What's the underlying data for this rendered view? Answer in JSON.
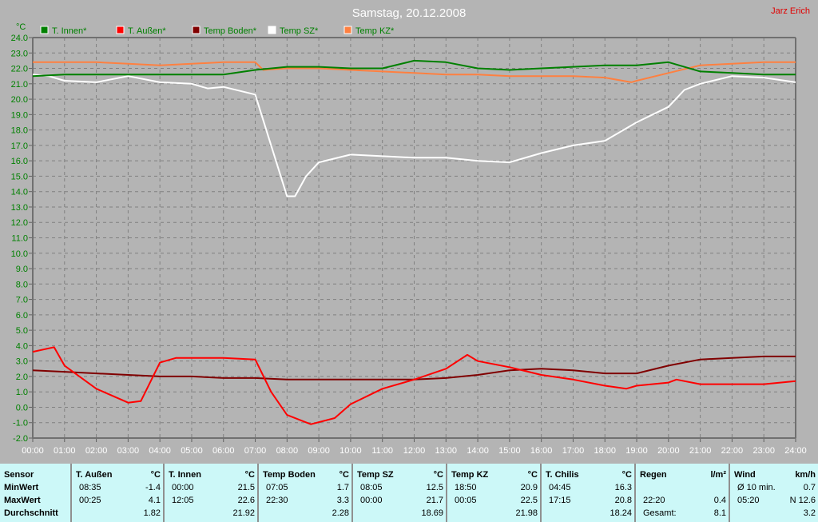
{
  "header": {
    "title": "Samstag, 20.12.2008",
    "author": "Jarz Erich",
    "unit": "°C"
  },
  "chart_data": {
    "type": "line",
    "title": "Samstag, 20.12.2008",
    "ylabel": "°C",
    "ylim": [
      -2,
      24
    ],
    "xlim": [
      0,
      24
    ],
    "grid": true,
    "legend": "top",
    "yticks": [
      "24.0",
      "23.0",
      "22.0",
      "21.0",
      "20.0",
      "19.0",
      "18.0",
      "17.0",
      "16.0",
      "15.0",
      "14.0",
      "13.0",
      "12.0",
      "11.0",
      "10.0",
      "9.0",
      "8.0",
      "7.0",
      "6.0",
      "5.0",
      "4.0",
      "3.0",
      "2.0",
      "1.0",
      "0.0",
      "-1.0",
      "-2.0"
    ],
    "xticks": [
      "00:00",
      "01:00",
      "02:00",
      "03:00",
      "04:00",
      "05:00",
      "06:00",
      "07:00",
      "08:00",
      "09:00",
      "10:00",
      "11:00",
      "12:00",
      "13:00",
      "14:00",
      "15:00",
      "16:00",
      "17:00",
      "18:00",
      "19:00",
      "20:00",
      "21:00",
      "22:00",
      "23:00",
      "24:00"
    ],
    "series": [
      {
        "name": "T. Innen*",
        "color": "#008000",
        "x": [
          0,
          1,
          2,
          3,
          4,
          5,
          6,
          7,
          8,
          9,
          10,
          11,
          12,
          13,
          14,
          15,
          16,
          17,
          18,
          19,
          20,
          21,
          22,
          23,
          24
        ],
        "y": [
          21.5,
          21.6,
          21.6,
          21.6,
          21.6,
          21.6,
          21.6,
          21.9,
          22.1,
          22.1,
          22.0,
          22.0,
          22.5,
          22.4,
          22.0,
          21.9,
          22.0,
          22.1,
          22.2,
          22.2,
          22.4,
          21.8,
          21.7,
          21.6,
          21.6
        ]
      },
      {
        "name": "T. Außen*",
        "color": "#ff0000",
        "x": [
          0,
          0.67,
          1,
          2,
          3,
          3.4,
          4,
          4.5,
          5,
          6,
          7,
          7.5,
          8,
          8.75,
          9.5,
          10,
          11,
          12,
          13,
          13.67,
          14,
          15,
          16,
          17,
          18,
          18.67,
          19,
          20,
          20.25,
          21,
          22,
          23,
          24
        ],
        "y": [
          3.6,
          3.9,
          2.7,
          1.2,
          0.3,
          0.4,
          2.9,
          3.2,
          3.2,
          3.2,
          3.1,
          1.0,
          -0.5,
          -1.1,
          -0.7,
          0.2,
          1.2,
          1.8,
          2.5,
          3.4,
          3.0,
          2.6,
          2.1,
          1.8,
          1.4,
          1.2,
          1.4,
          1.6,
          1.8,
          1.5,
          1.5,
          1.5,
          1.7
        ]
      },
      {
        "name": "Temp Boden*",
        "color": "#800000",
        "x": [
          0,
          1,
          2,
          3,
          4,
          5,
          6,
          7,
          8,
          9,
          10,
          11,
          12,
          13,
          14,
          15,
          16,
          17,
          18,
          19,
          20,
          21,
          22,
          23,
          24
        ],
        "y": [
          2.4,
          2.3,
          2.2,
          2.1,
          2.0,
          2.0,
          1.9,
          1.9,
          1.8,
          1.8,
          1.8,
          1.8,
          1.8,
          1.9,
          2.1,
          2.4,
          2.5,
          2.4,
          2.2,
          2.2,
          2.7,
          3.1,
          3.2,
          3.3,
          3.3
        ]
      },
      {
        "name": "Temp SZ*",
        "color": "#ffffff",
        "x": [
          0,
          0.5,
          1,
          2,
          3,
          4,
          5,
          5.5,
          6,
          7,
          7.5,
          8,
          8.25,
          8.6,
          9,
          10,
          11,
          12,
          13,
          14,
          15,
          16,
          17,
          18,
          19,
          20,
          20.5,
          21,
          22,
          23,
          24
        ],
        "y": [
          21.6,
          21.5,
          21.2,
          21.1,
          21.5,
          21.1,
          21.0,
          20.7,
          20.8,
          20.3,
          17.0,
          13.7,
          13.7,
          15.0,
          15.9,
          16.4,
          16.3,
          16.2,
          16.2,
          16.0,
          15.9,
          16.5,
          17.0,
          17.3,
          18.5,
          19.5,
          20.6,
          21.0,
          21.5,
          21.4,
          21.1
        ]
      },
      {
        "name": "Temp KZ*",
        "color": "#ff8040",
        "x": [
          0,
          2,
          3,
          4,
          6,
          7,
          7.25,
          8,
          9,
          10,
          11,
          12,
          13,
          14,
          15,
          16,
          17,
          18,
          18.83,
          19,
          20,
          21,
          22,
          23,
          24
        ],
        "y": [
          22.4,
          22.4,
          22.3,
          22.2,
          22.4,
          22.4,
          21.9,
          22.0,
          22.0,
          21.9,
          21.8,
          21.7,
          21.6,
          21.6,
          21.5,
          21.5,
          21.5,
          21.4,
          21.1,
          21.2,
          21.7,
          22.2,
          22.3,
          22.4,
          22.4
        ]
      }
    ]
  },
  "table": {
    "columns": [
      {
        "head": "Sensor",
        "unit": "",
        "rows": [
          [
            "MinWert",
            ""
          ],
          [
            "MaxWert",
            ""
          ],
          [
            "Durchschnitt",
            ""
          ]
        ]
      },
      {
        "head": "T. Außen",
        "unit": "°C",
        "rows": [
          [
            "08:35",
            "-1.4"
          ],
          [
            "00:25",
            "4.1"
          ],
          [
            "",
            "1.82"
          ]
        ]
      },
      {
        "head": "T. Innen",
        "unit": "°C",
        "rows": [
          [
            "00:00",
            "21.5"
          ],
          [
            "12:05",
            "22.6"
          ],
          [
            "",
            "21.92"
          ]
        ]
      },
      {
        "head": "Temp Boden",
        "unit": "°C",
        "rows": [
          [
            "07:05",
            "1.7"
          ],
          [
            "22:30",
            "3.3"
          ],
          [
            "",
            "2.28"
          ]
        ]
      },
      {
        "head": "Temp SZ",
        "unit": "°C",
        "rows": [
          [
            "08:05",
            "12.5"
          ],
          [
            "00:00",
            "21.7"
          ],
          [
            "",
            "18.69"
          ]
        ]
      },
      {
        "head": "Temp KZ",
        "unit": "°C",
        "rows": [
          [
            "18:50",
            "20.9"
          ],
          [
            "00:05",
            "22.5"
          ],
          [
            "",
            "21.98"
          ]
        ]
      },
      {
        "head": "T. Chilis",
        "unit": "°C",
        "rows": [
          [
            "04:45",
            "16.3"
          ],
          [
            "17:15",
            "20.8"
          ],
          [
            "",
            "18.24"
          ]
        ]
      },
      {
        "head": "Regen",
        "unit": "l/m²",
        "rows": [
          [
            "",
            ""
          ],
          [
            "22:20",
            "0.4"
          ],
          [
            "Gesamt:",
            "8.1"
          ]
        ]
      },
      {
        "head": "Wind",
        "unit": "km/h",
        "rows": [
          [
            "Ø 10 min.",
            "0.7"
          ],
          [
            "05:20",
            "N 12.6"
          ],
          [
            "",
            "3.2"
          ]
        ]
      }
    ]
  }
}
